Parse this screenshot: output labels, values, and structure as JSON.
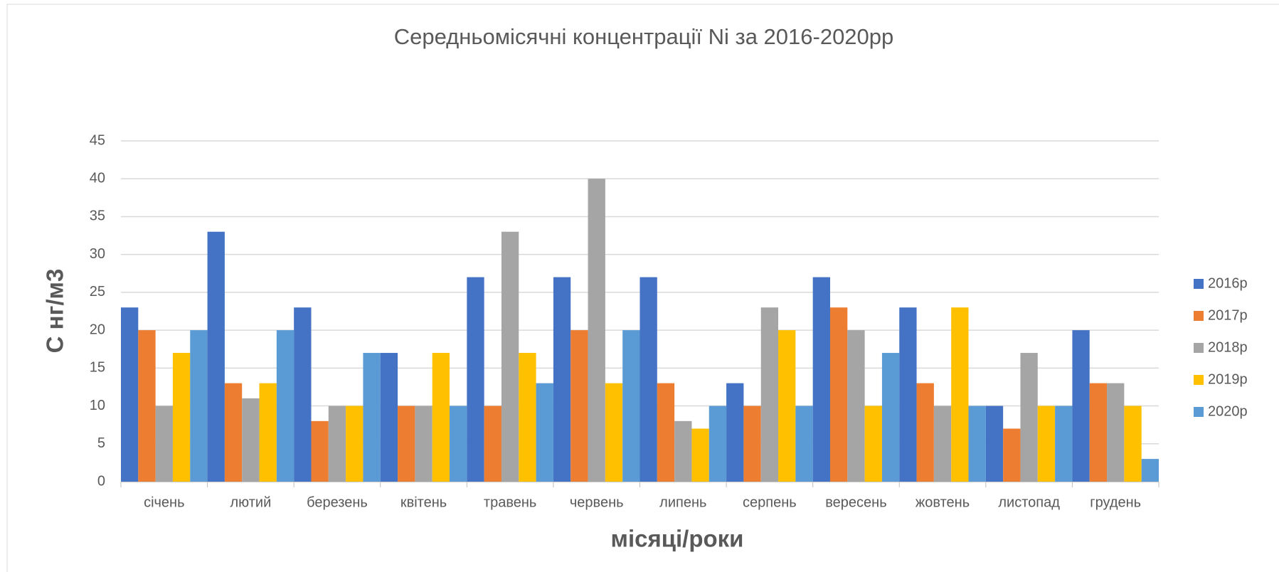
{
  "chart_data": {
    "type": "bar",
    "title": "Середньомісячні концентрації Ni за 2016-2020рр",
    "x_label": "місяці/роки",
    "y_label": "С нг/м3",
    "categories": [
      "січень",
      "лютий",
      "березень",
      "квітень",
      "травень",
      "червень",
      "липень",
      "серпень",
      "вересень",
      "жовтень",
      "листопад",
      "грудень"
    ],
    "series": [
      {
        "name": "2016р",
        "color": "#4472c4",
        "values": [
          23,
          33,
          23,
          17,
          27,
          27,
          27,
          13,
          27,
          23,
          10,
          20
        ]
      },
      {
        "name": "2017р",
        "color": "#ed7d31",
        "values": [
          20,
          13,
          8,
          10,
          10,
          20,
          13,
          10,
          23,
          13,
          7,
          13
        ]
      },
      {
        "name": "2018р",
        "color": "#a5a5a5",
        "values": [
          10,
          11,
          10,
          10,
          33,
          40,
          8,
          23,
          20,
          10,
          17,
          13
        ]
      },
      {
        "name": "2019р",
        "color": "#ffc000",
        "values": [
          17,
          13,
          10,
          17,
          17,
          13,
          7,
          20,
          10,
          23,
          10,
          10
        ]
      },
      {
        "name": "2020р",
        "color": "#5b9bd5",
        "values": [
          20,
          20,
          17,
          10,
          13,
          20,
          10,
          10,
          17,
          10,
          10,
          3
        ]
      }
    ],
    "ylim": [
      0,
      45
    ],
    "yticks": [
      0,
      5,
      10,
      15,
      20,
      25,
      30,
      35,
      40,
      45
    ],
    "grid": true,
    "legend": "right"
  }
}
